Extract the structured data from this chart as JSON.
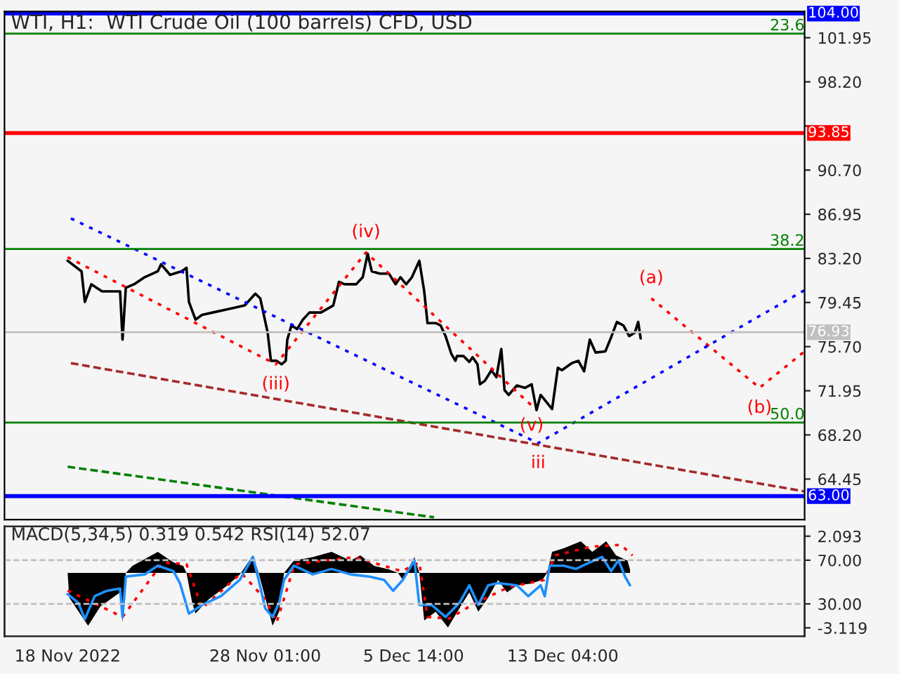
{
  "chart_data": [
    {
      "type": "line",
      "title": "WTI, H1:  WTI Crude Oil (100 barrels) CFD, USD",
      "xlim": [
        "2022-11-14T19:00",
        "2022-12-25T11:00"
      ],
      "tick_labels": "y",
      "ylim": [
        61.0,
        104.18
      ],
      "yticks": [
        {
          "value": 64.45,
          "label": "64.45"
        },
        {
          "value": 68.2,
          "label": "68.20"
        },
        {
          "value": 71.95,
          "label": "71.95"
        },
        {
          "value": 75.7,
          "label": "75.70"
        },
        {
          "value": 79.45,
          "label": "79.45"
        },
        {
          "value": 83.2,
          "label": "83.20"
        },
        {
          "value": 86.95,
          "label": "86.95"
        },
        {
          "value": 90.7,
          "label": "90.70"
        },
        {
          "value": 94.45,
          "label": null
        },
        {
          "value": 98.2,
          "label": "98.20"
        },
        {
          "value": 101.95,
          "label": "101.95"
        }
      ],
      "grid": false,
      "legend": false,
      "series": [
        {
          "color": "#000000",
          "line_style": "solid",
          "x": [
            "2022-11-18T00:00",
            "2022-11-18T17:00",
            "2022-11-18T21:00",
            "2022-11-19T05:00",
            "2022-11-19T18:00",
            "2022-11-20T16:00",
            "2022-11-20T19:00",
            "2022-11-20T23:00",
            "2022-11-21T09:00",
            "2022-11-21T22:00",
            "2022-11-22T14:00",
            "2022-11-22T18:00",
            "2022-11-23T05:00",
            "2022-11-23T19:00",
            "2022-11-24T01:00",
            "2022-11-24T04:00",
            "2022-11-24T12:00",
            "2022-11-24T20:00",
            "2022-11-25T09:00",
            "2022-11-26T05:00",
            "2022-11-27T00:00",
            "2022-11-27T13:00",
            "2022-11-27T19:00",
            "2022-11-28T04:00",
            "2022-11-28T08:00",
            "2022-11-28T15:00",
            "2022-11-28T21:00",
            "2022-11-29T02:00",
            "2022-11-29T04:00",
            "2022-11-29T09:00",
            "2022-11-29T16:00",
            "2022-11-29T23:00",
            "2022-11-30T07:00",
            "2022-11-30T21:00",
            "2022-12-01T12:00",
            "2022-12-01T19:00",
            "2022-12-02T02:00",
            "2022-12-02T09:00",
            "2022-12-02T16:00",
            "2022-12-03T00:00",
            "2022-12-03T06:00",
            "2022-12-03T11:00",
            "2022-12-03T21:00",
            "2022-12-04T08:00",
            "2022-12-04T16:00",
            "2022-12-04T22:00",
            "2022-12-05T05:00",
            "2022-12-05T12:00",
            "2022-12-05T21:00",
            "2022-12-06T03:00",
            "2022-12-06T07:00",
            "2022-12-06T17:00",
            "2022-12-06T23:00",
            "2022-12-07T05:00",
            "2022-12-07T12:00",
            "2022-12-07T17:00",
            "2022-12-07T19:00",
            "2022-12-08T03:00",
            "2022-12-08T10:00",
            "2022-12-08T14:00",
            "2022-12-08T20:00",
            "2022-12-08T23:00",
            "2022-12-09T05:00",
            "2022-12-09T13:00",
            "2022-12-09T19:00",
            "2022-12-10T01:00",
            "2022-12-10T05:00",
            "2022-12-10T10:00",
            "2022-12-10T20:00",
            "2022-12-11T06:00",
            "2022-12-11T14:00",
            "2022-12-11T20:00",
            "2022-12-12T01:00",
            "2022-12-12T15:00",
            "2022-12-12T22:00",
            "2022-12-13T03:00",
            "2022-12-13T15:00",
            "2022-12-13T23:00",
            "2022-12-14T06:00",
            "2022-12-14T13:00",
            "2022-12-14T20:00",
            "2022-12-15T08:00",
            "2022-12-15T15:00",
            "2022-12-15T22:00",
            "2022-12-16T06:00",
            "2022-12-16T13:00",
            "2022-12-16T20:00",
            "2022-12-17T00:00",
            "2022-12-17T03:00"
          ],
          "values": [
            83.0,
            82.1,
            79.5,
            81.0,
            80.4,
            80.4,
            76.3,
            80.7,
            81.0,
            81.6,
            82.1,
            82.7,
            81.8,
            82.1,
            82.4,
            79.5,
            78.0,
            78.4,
            78.6,
            78.9,
            79.2,
            80.2,
            79.8,
            76.9,
            74.5,
            74.5,
            74.2,
            74.5,
            76.3,
            77.5,
            77.2,
            78.0,
            78.6,
            78.6,
            79.2,
            81.2,
            81.0,
            81.0,
            81.0,
            81.6,
            83.6,
            82.1,
            81.9,
            81.9,
            81.0,
            81.6,
            81.0,
            81.6,
            83.0,
            80.4,
            77.7,
            77.7,
            77.5,
            76.6,
            75.1,
            74.5,
            74.9,
            74.9,
            74.4,
            74.8,
            74.2,
            72.5,
            72.8,
            73.7,
            73.1,
            75.5,
            72.0,
            71.6,
            72.4,
            72.2,
            72.5,
            70.3,
            71.6,
            70.4,
            73.9,
            73.7,
            74.3,
            74.5,
            73.6,
            76.3,
            75.2,
            75.3,
            76.5,
            77.8,
            77.5,
            76.6,
            76.9,
            77.8,
            76.4
          ]
        },
        {
          "color": "#ff0000",
          "line_style": "dotted",
          "x": [
            "2022-11-18T00:00",
            "2022-11-28T14:00",
            "2022-12-03T04:00",
            "2022-12-11T14:00"
          ],
          "values": [
            83.3,
            74.2,
            83.7,
            70.7
          ]
        },
        {
          "color": "#ff0000",
          "line_style": "dotted",
          "x": [
            "2022-12-17T16:00",
            "2022-12-23T04:00",
            "2022-12-25T11:00"
          ],
          "values": [
            79.8,
            72.2,
            75.3
          ]
        },
        {
          "color": "#0000ff",
          "line_style": "dotted",
          "x": [
            "2022-11-18T04:00",
            "2022-12-11T22:00",
            "2022-12-25T11:00"
          ],
          "values": [
            86.6,
            67.5,
            80.5
          ]
        },
        {
          "color": "#a52a2a",
          "line_style": "dashed",
          "x": [
            "2022-11-18T04:00",
            "2022-12-25T11:00"
          ],
          "values": [
            74.3,
            63.4
          ]
        },
        {
          "color": "#008000",
          "line_style": "dashed",
          "x": [
            "2022-11-18T00:00",
            "2022-12-06T15:00"
          ],
          "values": [
            65.5,
            61.2
          ]
        }
      ],
      "ref_lines": [
        {
          "axis": "y",
          "value": 104.0,
          "label": "104.00",
          "color": "#0000ff",
          "line_style": "solid"
        },
        {
          "axis": "y",
          "value": 102.3,
          "color": "#008000",
          "line_style": "solid"
        },
        {
          "axis": "y",
          "value": 93.85,
          "label": "93.85",
          "color": "#ff0000",
          "line_style": "solid"
        },
        {
          "axis": "y",
          "value": 84.0,
          "color": "#008000",
          "line_style": "solid"
        },
        {
          "axis": "y",
          "value": 76.93,
          "label": "76.93",
          "color": "#c0c0c0",
          "line_style": "solid"
        },
        {
          "axis": "y",
          "value": 69.25,
          "color": "#008000",
          "line_style": "solid"
        },
        {
          "axis": "y",
          "value": 63.0,
          "label": "63.00",
          "color": "#0000ff",
          "line_style": "solid"
        }
      ],
      "annotations": [
        {
          "text": "23.6",
          "x": "2022-12-25T11:00",
          "y": 102.3
        },
        {
          "text": "38.2",
          "x": "2022-12-25T11:00",
          "y": 84.0
        },
        {
          "text": "50.0",
          "x": "2022-12-25T11:00",
          "y": 69.25
        },
        {
          "text": "(iv)",
          "x": "2022-12-03T04:00",
          "y": 83.7
        },
        {
          "text": "(iii)",
          "x": "2022-11-28T14:00",
          "y": 74.2
        },
        {
          "text": "(v)",
          "x": "2022-12-11T14:00",
          "y": 70.7
        },
        {
          "text": "iii",
          "x": "2022-12-11T22:00",
          "y": 67.5
        },
        {
          "text": "(a)",
          "x": "2022-12-17T16:00",
          "y": 79.8
        },
        {
          "text": "(b)",
          "x": "2022-12-23T04:00",
          "y": 72.2
        }
      ]
    },
    {
      "type": "line",
      "title": "MACD(5,34,5) 0.319 0.542 RSI(14) 52.07",
      "xlim": [
        "2022-11-14T19:00",
        "2022-12-25T11:00"
      ],
      "xticks": [
        {
          "value": "2022-11-18",
          "label": "18 Nov 2022"
        },
        {
          "value": "2022-11-28T01:00",
          "label": "28 Nov 01:00"
        },
        {
          "value": "2022-12-05T14:00",
          "label": "5 Dec 14:00"
        },
        {
          "value": "2022-12-13T04:00",
          "label": "13 Dec 04:00"
        }
      ],
      "ylim": [
        -3.6,
        2.65
      ],
      "yticks": [
        2.093,
        -3.119
      ],
      "y2lim": [
        0.3,
        101.0
      ],
      "y2ticks": [
        {
          "value": 70,
          "label": "70.00"
        },
        {
          "value": 30,
          "label": "30.00"
        }
      ],
      "grid": false,
      "legend": false,
      "series": [
        {
          "type": "area",
          "color": "#000000",
          "x": [
            "2022-11-18T00:00",
            "2022-11-18T02:00",
            "2022-11-19T01:00",
            "2022-11-19T16:00",
            "2022-11-20T16:00",
            "2022-11-20T19:00",
            "2022-11-20T23:00",
            "2022-11-21T07:00",
            "2022-11-22T14:00",
            "2022-11-23T09:00",
            "2022-11-23T21:00",
            "2022-11-24T01:00",
            "2022-11-24T08:00",
            "2022-11-24T12:00",
            "2022-11-25T04:00",
            "2022-11-26T03:00",
            "2022-11-26T18:00",
            "2022-11-27T10:00",
            "2022-11-27T17:00",
            "2022-11-28T01:00",
            "2022-11-28T10:00",
            "2022-11-28T18:00",
            "2022-11-29T00:00",
            "2022-11-29T12:00",
            "2022-11-30T11:00",
            "2022-12-01T10:00",
            "2022-12-02T09:00",
            "2022-12-02T21:00",
            "2022-12-03T14:00",
            "2022-12-04T08:00",
            "2022-12-04T19:00",
            "2022-12-05T01:00",
            "2022-12-05T07:00",
            "2022-12-05T15:00",
            "2022-12-05T21:00",
            "2022-12-06T03:00",
            "2022-12-06T17:00",
            "2022-12-07T08:00",
            "2022-12-07T22:00",
            "2022-12-08T10:00",
            "2022-12-08T21:00",
            "2022-12-09T09:00",
            "2022-12-09T21:00",
            "2022-12-10T08:00",
            "2022-12-10T20:00",
            "2022-12-11T13:00",
            "2022-12-12T03:00",
            "2022-12-12T09:00",
            "2022-12-12T15:00",
            "2022-12-13T05:00",
            "2022-12-14T02:00",
            "2022-12-14T16:00",
            "2022-12-15T09:00",
            "2022-12-15T21:00",
            "2022-12-16T11:00",
            "2022-12-16T14:00"
          ],
          "values": [
            0,
            -1.4,
            -3.0,
            -1.9,
            -1.1,
            -2.8,
            0,
            0.4,
            1.2,
            0.6,
            0.4,
            0,
            -1.7,
            -2.3,
            -1.5,
            -0.7,
            -0.1,
            1.0,
            0,
            -1.4,
            -3.0,
            -2.2,
            0,
            0.7,
            0.9,
            1.2,
            0.7,
            1.0,
            0.4,
            0.2,
            0,
            -0.4,
            0.2,
            0.9,
            0,
            -2.7,
            -2.2,
            -3.1,
            -2.0,
            -1.1,
            -2.2,
            -1.4,
            -0.4,
            -1.1,
            -0.7,
            -0.6,
            -0.4,
            0,
            1.2,
            1.4,
            1.8,
            1.2,
            1.8,
            1.0,
            0.7,
            0.2
          ]
        },
        {
          "type": "line",
          "color": "#ff0000",
          "line_style": "dotted",
          "x": [
            "2022-11-18T00:00",
            "2022-11-20T19:00",
            "2022-11-22T20:00",
            "2022-11-24T01:00",
            "2022-11-24T20:00",
            "2022-11-26T20:00",
            "2022-11-28T01:00",
            "2022-11-28T15:00",
            "2022-11-29T13:00",
            "2022-12-02T14:00",
            "2022-12-05T00:00",
            "2022-12-05T21:00",
            "2022-12-06T07:00",
            "2022-12-07T09:00",
            "2022-12-08T14:00",
            "2022-12-10T10:00",
            "2022-12-12T05:00",
            "2022-12-12T19:00",
            "2022-12-14T15:00",
            "2022-12-16T03:00",
            "2022-12-16T17:00"
          ],
          "values": [
            -1.0,
            -2.5,
            0.6,
            0.5,
            -2.0,
            0.0,
            -1.5,
            -2.8,
            0.5,
            0.9,
            0.1,
            0.6,
            -2.5,
            -2.6,
            -1.8,
            -0.8,
            -0.4,
            1.0,
            1.5,
            1.6,
            1.0
          ]
        },
        {
          "type": "line",
          "color": "#1e90ff",
          "line_style": "solid",
          "axis": "y2",
          "x": [
            "2022-11-18T00:00",
            "2022-11-18T13:00",
            "2022-11-18T21:00",
            "2022-11-19T09:00",
            "2022-11-20T00:00",
            "2022-11-20T16:00",
            "2022-11-20T19:00",
            "2022-11-20T23:00",
            "2022-11-21T22:00",
            "2022-11-22T14:00",
            "2022-11-23T09:00",
            "2022-11-23T17:00",
            "2022-11-24T04:00",
            "2022-11-24T20:00",
            "2022-11-25T19:00",
            "2022-11-26T18:00",
            "2022-11-27T10:00",
            "2022-11-27T17:00",
            "2022-11-28T01:00",
            "2022-11-28T10:00",
            "2022-11-28T18:00",
            "2022-11-29T00:00",
            "2022-11-29T12:00",
            "2022-11-30T11:00",
            "2022-12-01T10:00",
            "2022-12-02T09:00",
            "2022-12-03T08:00",
            "2022-12-04T02:00",
            "2022-12-04T13:00",
            "2022-12-05T01:00",
            "2022-12-05T15:00",
            "2022-12-05T21:00",
            "2022-12-06T12:00",
            "2022-12-07T05:00",
            "2022-12-07T22:00",
            "2022-12-08T10:00",
            "2022-12-08T21:00",
            "2022-12-09T09:00",
            "2022-12-09T21:00",
            "2022-12-10T20:00",
            "2022-12-11T10:00",
            "2022-12-12T01:00",
            "2022-12-12T06:00",
            "2022-12-12T12:00",
            "2022-12-13T05:00",
            "2022-12-13T20:00",
            "2022-12-14T10:00",
            "2022-12-15T04:00",
            "2022-12-15T15:00",
            "2022-12-16T00:00",
            "2022-12-16T08:00",
            "2022-12-16T14:00"
          ],
          "values": [
            39,
            31,
            16,
            37,
            42,
            44,
            18,
            55,
            57,
            65,
            60,
            49,
            21,
            29,
            37,
            52,
            73,
            52,
            26,
            18,
            31,
            52,
            65,
            57,
            62,
            57,
            55,
            52,
            42,
            52,
            70,
            29,
            29,
            18,
            31,
            47,
            29,
            47,
            49,
            47,
            37,
            47,
            37,
            65,
            65,
            62,
            67,
            73,
            60,
            70,
            55,
            47
          ]
        }
      ],
      "ref_lines": [
        {
          "axis": "y2",
          "value": 70,
          "color": "#c0c0c0",
          "line_style": "dashed"
        },
        {
          "axis": "y2",
          "value": 30,
          "color": "#c0c0c0",
          "line_style": "dashed"
        }
      ]
    }
  ]
}
